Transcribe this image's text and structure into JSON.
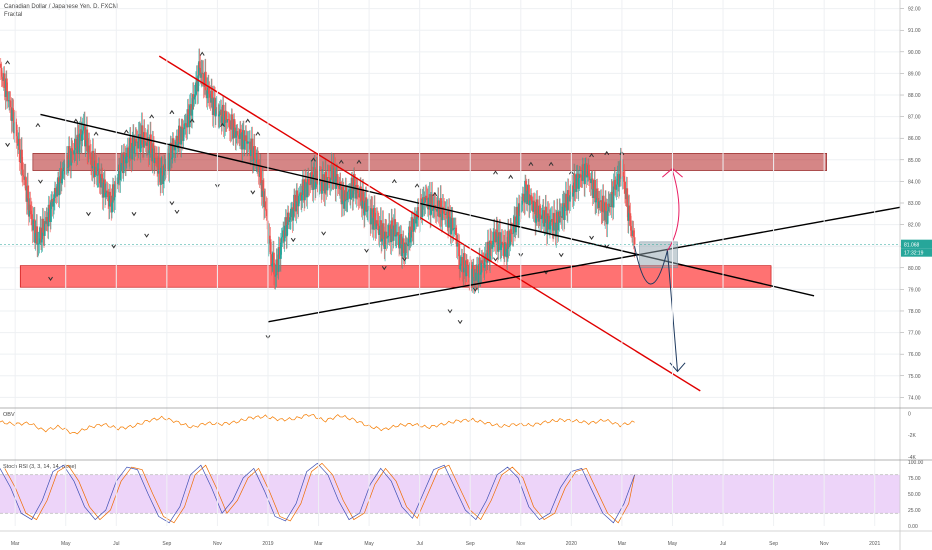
{
  "header": {
    "symbol_title": "Canadian Dollar / Japanese Yen, D, FXCM",
    "indicator_label": "Fractal"
  },
  "chart_data": [
    {
      "type": "candlestick",
      "title": "Canadian Dollar / Japanese Yen, D, FXCM",
      "x_tick_labels": [
        "Mar",
        "May",
        "Jul",
        "Sep",
        "Nov",
        "2019",
        "Mar",
        "May",
        "Jul",
        "Sep",
        "Nov",
        "2020",
        "Mar",
        "May",
        "Jul",
        "Sep",
        "Nov",
        "2021"
      ],
      "x_tick_index": [
        0,
        2,
        4,
        6,
        8,
        10,
        12,
        14,
        16,
        18,
        20,
        22,
        24,
        26,
        28,
        30,
        32,
        34
      ],
      "y_ticks": [
        74,
        75,
        76,
        77,
        78,
        79,
        80,
        81,
        82,
        83,
        84,
        85,
        86,
        87,
        88,
        89,
        90,
        91,
        92
      ],
      "y_tick_labels": [
        "74.00",
        "75.00",
        "76.00",
        "77.00",
        "78.00",
        "79.00",
        "80.00",
        "81.00",
        "82.00",
        "83.00",
        "84.00",
        "85.00",
        "86.00",
        "87.00",
        "88.00",
        "89.00",
        "90.00",
        "91.00",
        "92.00"
      ],
      "ylim": [
        73.6,
        92.4
      ],
      "xlim": [
        0,
        35.6
      ],
      "last_price_label": "81.068",
      "countdown_label": "17:32:19",
      "last_price": 81.07,
      "price_path": [
        [
          0.0,
          89.2
        ],
        [
          0.3,
          88.0
        ],
        [
          0.6,
          86.5
        ],
        [
          0.9,
          84.5
        ],
        [
          1.2,
          82.5
        ],
        [
          1.5,
          81.2
        ],
        [
          1.8,
          82.0
        ],
        [
          2.2,
          83.5
        ],
        [
          2.6,
          84.8
        ],
        [
          3.0,
          85.6
        ],
        [
          3.3,
          86.4
        ],
        [
          3.6,
          85.0
        ],
        [
          4.0,
          84.0
        ],
        [
          4.4,
          83.0
        ],
        [
          4.8,
          84.8
        ],
        [
          5.2,
          85.6
        ],
        [
          5.6,
          86.0
        ],
        [
          6.0,
          85.5
        ],
        [
          6.4,
          84.2
        ],
        [
          6.8,
          85.5
        ],
        [
          7.2,
          86.2
        ],
        [
          7.6,
          87.5
        ],
        [
          7.9,
          89.2
        ],
        [
          8.2,
          88.2
        ],
        [
          8.6,
          87.2
        ],
        [
          9.0,
          86.8
        ],
        [
          9.4,
          86.2
        ],
        [
          9.8,
          85.8
        ],
        [
          10.2,
          84.8
        ],
        [
          10.5,
          82.8
        ],
        [
          10.7,
          80.5
        ],
        [
          10.9,
          79.8
        ],
        [
          11.2,
          81.6
        ],
        [
          11.6,
          82.8
        ],
        [
          12.0,
          83.6
        ],
        [
          12.4,
          84.2
        ],
        [
          12.8,
          83.8
        ],
        [
          13.2,
          84.4
        ],
        [
          13.6,
          83.2
        ],
        [
          14.0,
          83.8
        ],
        [
          14.4,
          83.0
        ],
        [
          14.8,
          82.2
        ],
        [
          15.2,
          81.4
        ],
        [
          15.6,
          81.8
        ],
        [
          16.0,
          80.8
        ],
        [
          16.4,
          82.2
        ],
        [
          16.8,
          83.2
        ],
        [
          17.2,
          82.8
        ],
        [
          17.6,
          82.5
        ],
        [
          18.0,
          81.8
        ],
        [
          18.2,
          80.2
        ],
        [
          18.5,
          80.0
        ],
        [
          18.8,
          79.6
        ],
        [
          19.2,
          80.4
        ],
        [
          19.6,
          81.5
        ],
        [
          20.0,
          80.8
        ],
        [
          20.4,
          82.2
        ],
        [
          20.8,
          83.6
        ],
        [
          21.2,
          82.6
        ],
        [
          21.6,
          82.2
        ],
        [
          22.0,
          82.0
        ],
        [
          22.4,
          83.0
        ],
        [
          22.8,
          84.0
        ],
        [
          23.2,
          84.6
        ],
        [
          23.6,
          83.2
        ],
        [
          24.0,
          82.5
        ],
        [
          24.3,
          83.6
        ],
        [
          24.6,
          84.6
        ],
        [
          24.9,
          82.2
        ],
        [
          25.1,
          81.07
        ]
      ],
      "fractal_up_x": [
        0.3,
        1.5,
        3.0,
        3.8,
        5.0,
        6.0,
        6.8,
        7.6,
        8.0,
        8.8,
        9.8,
        10.2,
        12.4,
        13.5,
        14.2,
        15.6,
        16.5,
        17.2,
        19.6,
        20.2,
        21.0,
        21.8,
        22.6,
        23.4,
        24.0,
        24.6
      ],
      "fractal_up_y": [
        89.5,
        86.6,
        86.8,
        86.2,
        86.3,
        87.0,
        87.2,
        86.8,
        89.9,
        86.6,
        86.8,
        86.2,
        85.0,
        84.9,
        84.9,
        84.0,
        83.8,
        83.4,
        84.4,
        84.2,
        84.8,
        84.8,
        84.4,
        85.2,
        85.3,
        85.3
      ],
      "fractal_down_x": [
        0.3,
        1.6,
        2.0,
        3.5,
        4.5,
        5.3,
        5.8,
        6.8,
        7.0,
        8.6,
        10.0,
        10.6,
        11.6,
        12.8,
        14.5,
        15.2,
        16.0,
        17.8,
        18.2,
        18.8,
        19.6,
        20.6,
        21.6,
        22.2,
        23.4,
        24.0
      ],
      "fractal_down_y": [
        85.7,
        84.0,
        79.5,
        82.5,
        81.0,
        82.5,
        81.5,
        83.0,
        82.6,
        83.8,
        83.5,
        76.8,
        81.3,
        81.6,
        80.8,
        80.0,
        80.4,
        78.0,
        77.5,
        79.0,
        80.4,
        80.6,
        79.8,
        80.6,
        81.4,
        81.0
      ],
      "resistance_zone": [
        84.5,
        85.3
      ],
      "support_zone": [
        79.1,
        80.1
      ],
      "lines": [
        {
          "from": [
            1.6,
            87.1
          ],
          "to": [
            32.2,
            78.7
          ],
          "color": "#000000"
        },
        {
          "from": [
            6.3,
            89.8
          ],
          "to": [
            27.7,
            74.3
          ],
          "color": "#e00000"
        },
        {
          "from": [
            10.6,
            77.5
          ],
          "to": [
            35.6,
            82.8
          ],
          "color": "#000000"
        }
      ],
      "projection_zone": [
        80.0,
        81.2
      ],
      "colors": {
        "bull": "#26a69a",
        "bear": "#ef5350",
        "grid": "#eef0f3",
        "resistance": "#b22222",
        "support": "#ff3b3b"
      }
    },
    {
      "type": "line",
      "title": "OBV",
      "y_tick_labels": [
        "0",
        "-2K",
        "-4K"
      ],
      "ylim": [
        -4.1,
        0.3
      ],
      "values": [
        -0.8,
        -1.0,
        -0.9,
        -1.6,
        -1.2,
        -1.9,
        -1.3,
        -1.0,
        -1.4,
        -1.2,
        -0.7,
        -0.4,
        -0.8,
        -1.3,
        -0.9,
        -1.0,
        -0.8,
        -0.4,
        -0.3,
        -0.6,
        -0.5,
        -0.1,
        -0.7,
        -0.2,
        -0.6,
        -1.2,
        -1.5,
        -1.1,
        -1.0,
        -1.3,
        -1.0,
        -0.7,
        -0.6,
        -0.9,
        -1.2,
        -1.0,
        -1.1,
        -0.8,
        -0.6,
        -0.7,
        -0.9,
        -0.6,
        -1.1,
        -0.8
      ],
      "color": "#f57c00"
    },
    {
      "type": "line",
      "title": "Stoch RSI (3, 3, 14, 14, close)",
      "y_tick_labels": [
        "100.00",
        "75.00",
        "50.00",
        "25.00",
        "0.00"
      ],
      "y_ticks": [
        100,
        75,
        50,
        25,
        0
      ],
      "ylim": [
        0,
        100
      ],
      "bands": [
        20,
        80
      ],
      "k": [
        90,
        60,
        20,
        10,
        40,
        85,
        95,
        70,
        30,
        10,
        25,
        70,
        92,
        88,
        50,
        15,
        5,
        30,
        80,
        95,
        60,
        20,
        40,
        75,
        90,
        55,
        15,
        8,
        35,
        85,
        98,
        80,
        40,
        10,
        20,
        65,
        90,
        70,
        30,
        12,
        50,
        88,
        95,
        60,
        25,
        10,
        40,
        80,
        92,
        75,
        30,
        10,
        20,
        60,
        85,
        90,
        55,
        20,
        5,
        35,
        80
      ],
      "d_offset": 1.5,
      "k_color": "#3f51b5",
      "d_color": "#ef6c00",
      "band_fill": "#e9c9f7"
    }
  ]
}
